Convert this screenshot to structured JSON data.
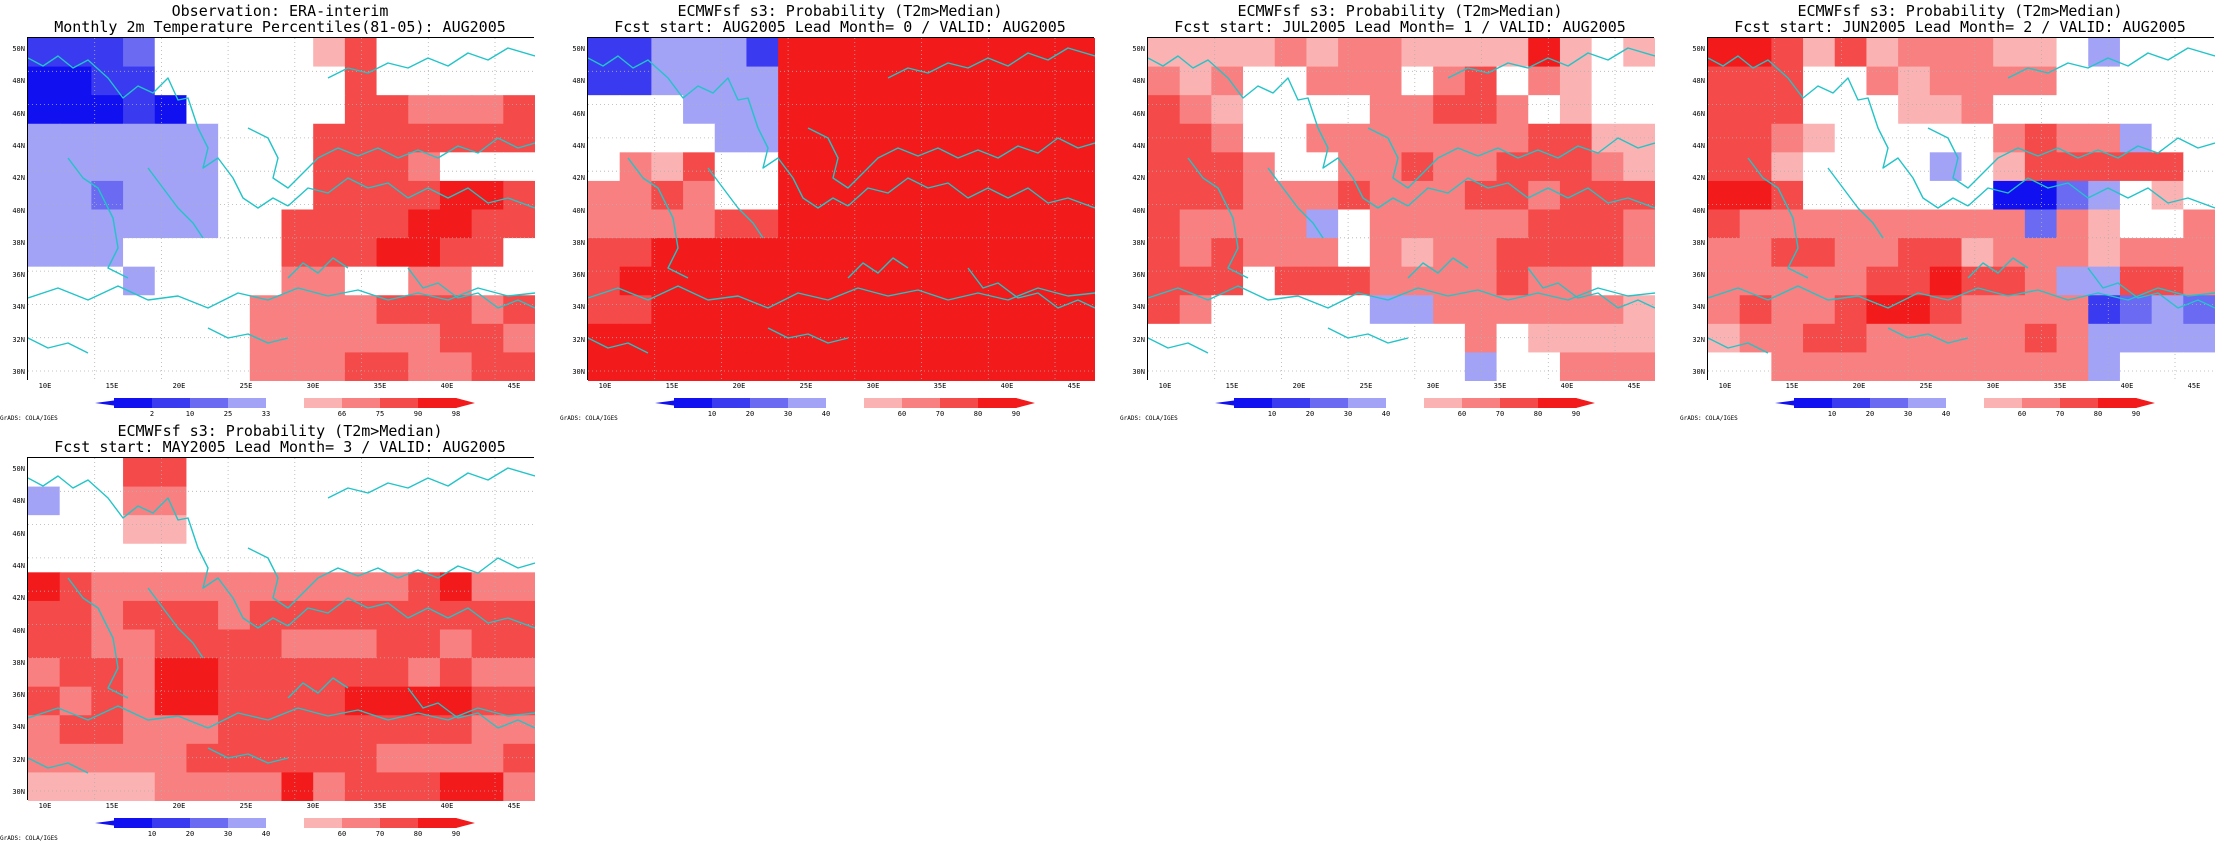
{
  "lat_labels": [
    "50N",
    "48N",
    "46N",
    "44N",
    "42N",
    "40N",
    "38N",
    "36N",
    "34N",
    "32N",
    "30N"
  ],
  "lon_labels": [
    "10E",
    "15E",
    "20E",
    "25E",
    "30E",
    "35E",
    "40E",
    "45E"
  ],
  "credit": "GrADS: COLA/IGES",
  "colors": {
    "coastline": "#22c4c8",
    "grid": "#b0b0b0",
    "white": "#ffffff",
    "blues": [
      "#1010f0",
      "#3a3af0",
      "#6a6af2",
      "#a2a2f6"
    ],
    "reds": [
      "#fab2b2",
      "#f88080",
      "#f44a4a",
      "#f21a1a"
    ]
  },
  "panels": [
    {
      "id": "obs",
      "title_line1": "Observation: ERA-interim",
      "title_line2": "Monthly 2m Temperature Percentiles(81-05): AUG2005",
      "colorbar_labels": [
        "2",
        "10",
        "25",
        "33",
        "66",
        "75",
        "90",
        "98"
      ],
      "legend_kind": "percentile",
      "grid_rows": [
        "BBBb00000RR00000",
        "BBBB000000R00000",
        "BBBBB00000RRRRRR",
        "bbbbbb000RRRRRRR",
        "bbbbbb000RRRR000",
        "bbbbbb000RRRRRRR",
        "bbbbbb00RRRRRRRR",
        "bbb00000RRRRRRR0",
        "000b0000RR00RR00",
        "0000000RRRRRRRRR",
        "0000000RRRRRRRRR",
        "0000000RRRRRRRRR"
      ],
      "grid_levels": [
        "1110000000330000",
        "0011000000300000",
        "0001000000332223",
        "2222230003333333",
        "2222230003332000",
        "2212230003333443",
        "2222220033334433",
        "2220000033344330",
        "0002000022002200",
        "0000000222233323",
        "0000000222222332",
        "0000000222332233"
      ]
    },
    {
      "id": "lead0",
      "title_line1": "ECMWFsf s3: Probability (T2m>Median)",
      "title_line2": "Fcst start: AUG2005  Lead Month= 0 / VALID: AUG2005",
      "colorbar_labels": [
        "10",
        "20",
        "30",
        "40",
        "60",
        "70",
        "80",
        "90"
      ],
      "legend_kind": "probability",
      "grid_rows": [
        "BBbbbBRRRRRRRRRR",
        "BBbbbbRRRRRRRRRR",
        "000bbbRRRRRRRRRR",
        "0000bbRRRRRRRRRR",
        "0RRR00RRRRRRRRRR",
        "RRRR00RRRRRRRRRR",
        "RRRRRRRRRRRRRRRR",
        "RRRRRRRRRRRRRRRR",
        "RRRRRRRRRRRRRRRR",
        "RRRRRRRRRRRRRRRR",
        "RRRRRRRRRRRRRRRR",
        "RRRRRRRRRRRRRRRR"
      ],
      "grid_levels": [
        "1134434444444444",
        "2223334444444444",
        "0003334444444444",
        "0000334444444444",
        "0213004444444444",
        "2232004444444444",
        "2222334444444444",
        "3344444444444444",
        "3444444444444444",
        "3344444444444444",
        "4444444444444444",
        "4444444444444444"
      ]
    },
    {
      "id": "lead1",
      "title_line1": "ECMWFsf s3: Probability (T2m>Median)",
      "title_line2": "Fcst start: JUL2005  Lead Month= 1 / VALID: AUG2005",
      "colorbar_labels": [
        "10",
        "20",
        "30",
        "40",
        "60",
        "70",
        "80",
        "90"
      ],
      "legend_kind": "probability",
      "grid_rows": [
        "RRRRRRRRRRRRRR0R",
        "RRR00RRR0RR0RR00",
        "RRR0000RRRRR0R00",
        "RRR00RRRRRRRRRRR",
        "RRRR00RRRRRRRRRR",
        "RRRRRRRRRRRRRRRR",
        "RRRRRb0RRRRRRRRR",
        "RRRRRR0RRRRRRRRR",
        "RRR0RRRRRRRRRR00",
        "RR00000bbRRRRRRR",
        "0000000000R0RRRR",
        "0000000000b00RRR"
      ],
      "grid_levels": [
        "1111212211114020",
        "2120022202302100",
        "3210000223320100",
        "3320022222223311",
        "3332002232233321",
        "3332223222332333",
        "3222230222223332",
        "3232220212233332",
        "3330333222232200",
        "3200000332222221",
        "0000000000201111",
        "0000000000300222"
      ]
    },
    {
      "id": "lead2",
      "title_line1": "ECMWFsf s3: Probability (T2m>Median)",
      "title_line2": "Fcst start: JUN2005  Lead Month= 2 / VALID: AUG2005",
      "colorbar_labels": [
        "10",
        "20",
        "30",
        "40",
        "60",
        "70",
        "80",
        "90"
      ],
      "legend_kind": "probability",
      "grid_rows": [
        "RRRRRRRRRRR0b000",
        "RRR00RRRRRR00000",
        "RRR000RRR0000000",
        "RRRR00000RRRRb00",
        "RRR0000b0RRRRRR0",
        "RRR000000BBbb0R0",
        "RRRRRRRRRRbRR00R",
        "RRRRRRRRRRRRRRRR",
        "RRRRRRRRRRRbbRRR",
        "RRRRRRRRRRRRBbbb",
        "RRRRRRRRRRRRbbbb",
        "00RRRRRRRRRRb000"
      ],
      "grid_levels": [
        "4431312221103000",
        "3330021222200000",
        "3330001120000000",
        "3321000002322300",
        "3310000200333330",
        "4430000000012010",
        "3222222222121002",
        "2233223312221222",
        "2222233433222332",
        "2322344322222020",
        "1223322222322222",
        "0022222222223000"
      ]
    },
    {
      "id": "lead3",
      "title_line1": "ECMWFsf s3: Probability (T2m>Median)",
      "title_line2": "Fcst start: MAY2005  Lead Month= 3 / VALID: AUG2005",
      "colorbar_labels": [
        "10",
        "20",
        "30",
        "40",
        "60",
        "70",
        "80",
        "90"
      ],
      "legend_kind": "probability",
      "grid_rows": [
        "000RR00000000000",
        "b00RR00000000000",
        "000RR00000000000",
        "0000000000000000",
        "RRRRRRRRRRRRRRRR",
        "RRRRRRRRRRRRRRRR",
        "RRRRRRRRRRRRRRRR",
        "RRRRRRRRRRRRRRRR",
        "RRRRRRRRRRRRRRRR",
        "RRRRRRRRRRRRRRRR",
        "RRRRRRRRRRRRRRRR",
        "RRRRRRRRRRRRRRRR"
      ],
      "grid_levels": [
        "0003300000000000",
        "3002200000000000",
        "0001100000000000",
        "0000000000000000",
        "4322222222223422",
        "3323332333333333",
        "3322333322233233",
        "2332443333332322",
        "3232443333444433",
        "2332223333333322",
        "2222233333322223",
        "1111222242333442"
      ]
    }
  ]
}
